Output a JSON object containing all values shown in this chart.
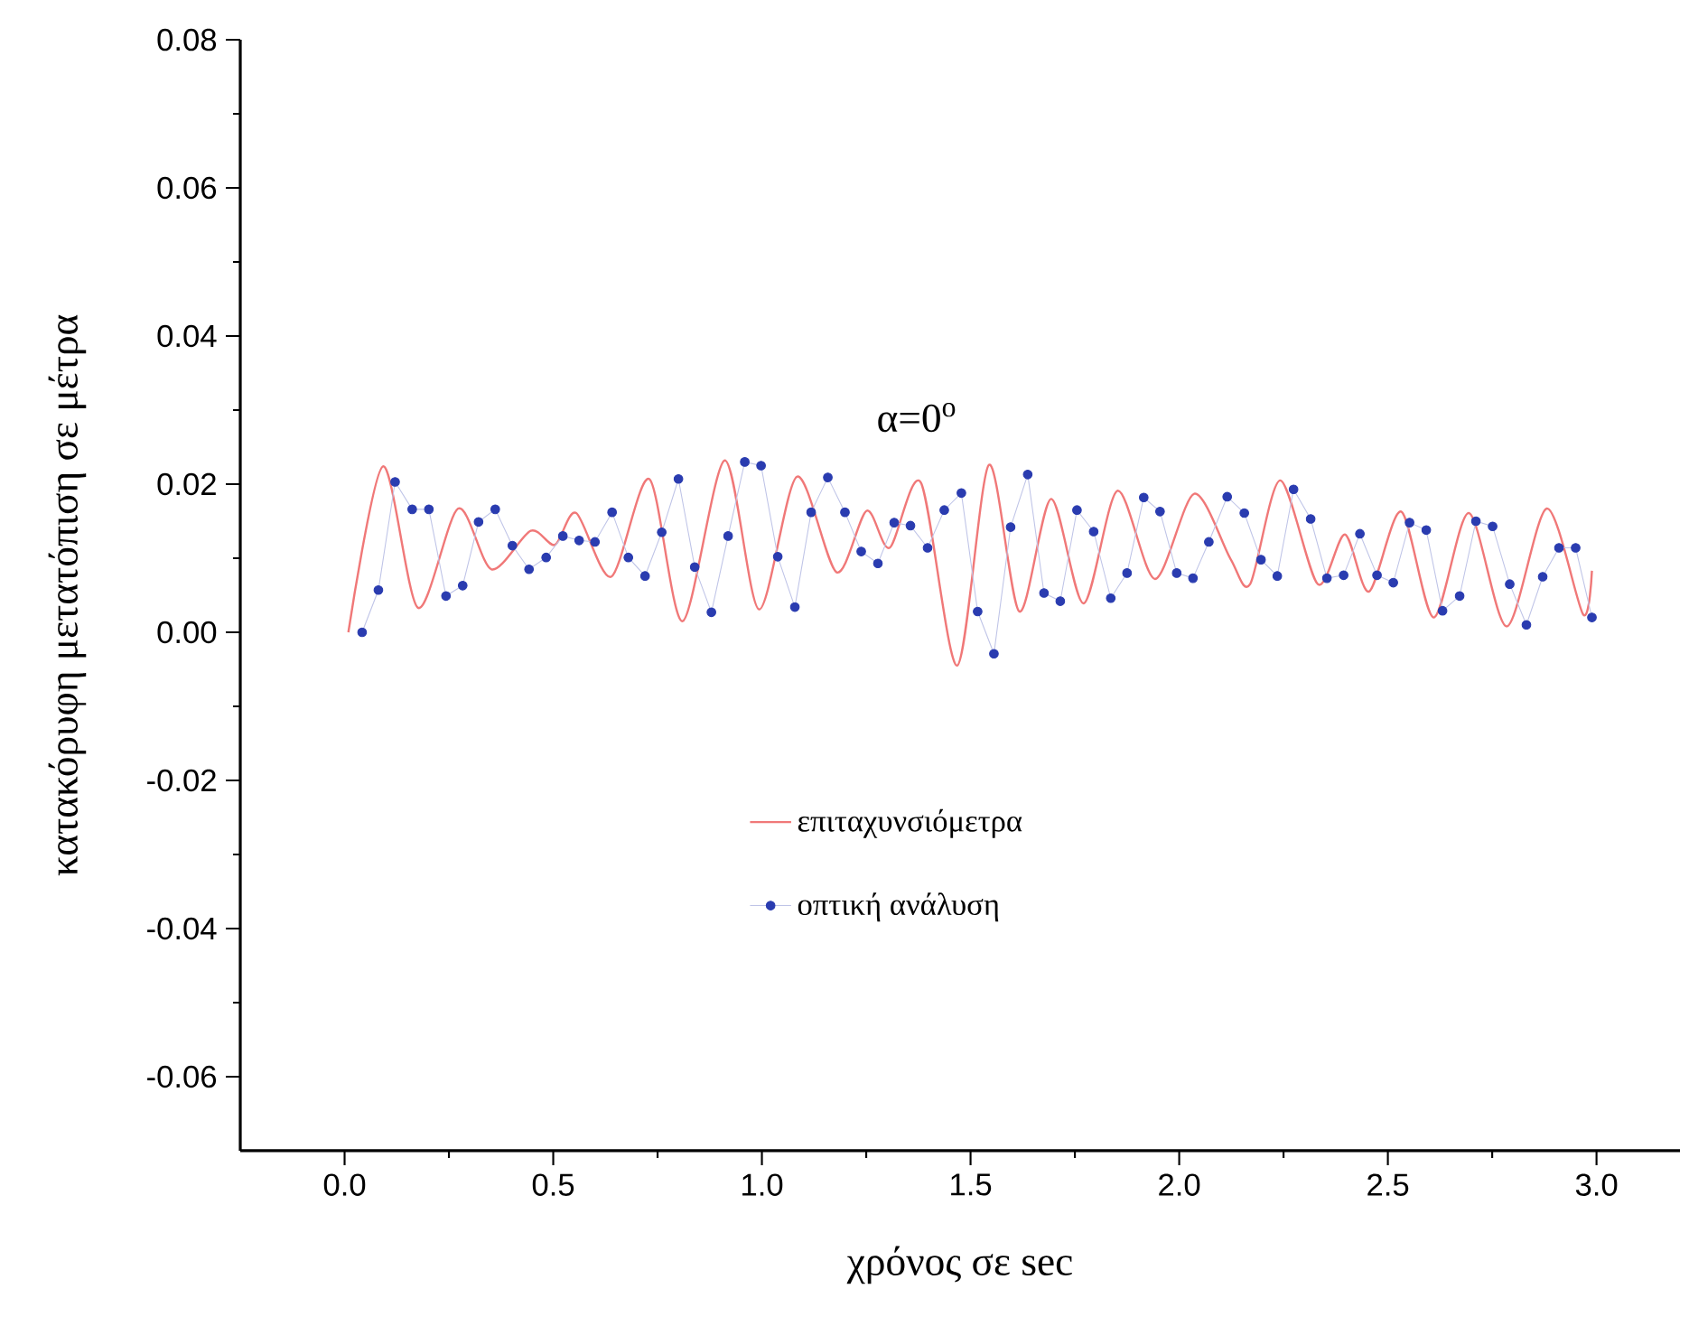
{
  "chart_data": {
    "type": "line",
    "xlabel": "χρόνος σε sec",
    "ylabel": "κατακόρυφη μετατόπιση σε μέτρα",
    "annotations": [
      "α=0$^{o}$"
    ],
    "xlim": [
      -0.25,
      3.2
    ],
    "ylim": [
      -0.07,
      0.08
    ],
    "xticks": [
      {
        "value": 0,
        "label": "0.0"
      },
      {
        "value": 0.5,
        "label": "0.5"
      },
      {
        "value": 1,
        "label": "1.0"
      },
      {
        "value": 1.5,
        "label": "1.5"
      },
      {
        "value": 2,
        "label": "2.0"
      },
      {
        "value": 2.5,
        "label": "2.5"
      },
      {
        "value": 3,
        "label": "3.0"
      }
    ],
    "yticks": [
      {
        "value": -0.06,
        "label": "-0.06"
      },
      {
        "value": -0.04,
        "label": "-0.04"
      },
      {
        "value": -0.02,
        "label": "-0.02"
      },
      {
        "value": 0,
        "label": "0.00"
      },
      {
        "value": 0.02,
        "label": "0.02"
      },
      {
        "value": 0.04,
        "label": "0.04"
      },
      {
        "value": 0.06,
        "label": "0.06"
      },
      {
        "value": 0.08,
        "label": "0.08"
      }
    ],
    "grid": false,
    "legend": "bottom",
    "series": [
      {
        "name": "επιταχυνσιόμετρα",
        "color": "#f07878",
        "marker": "none",
        "x": [
          0.009,
          0.092,
          0.176,
          0.272,
          0.352,
          0.446,
          0.504,
          0.555,
          0.639,
          0.73,
          0.81,
          0.911,
          0.993,
          1.084,
          1.179,
          1.251,
          1.306,
          1.381,
          1.468,
          1.544,
          1.617,
          1.693,
          1.771,
          1.852,
          1.942,
          2.036,
          2.123,
          2.17,
          2.242,
          2.332,
          2.397,
          2.455,
          2.532,
          2.61,
          2.694,
          2.785,
          2.881,
          2.968,
          2.989
        ],
        "values": [
          0.0,
          0.0224,
          0.0033,
          0.0167,
          0.0085,
          0.0137,
          0.0118,
          0.0161,
          0.0075,
          0.0207,
          0.0015,
          0.0232,
          0.0031,
          0.021,
          0.0081,
          0.0164,
          0.0114,
          0.0202,
          -0.0045,
          0.0226,
          0.0028,
          0.018,
          0.0039,
          0.0191,
          0.0072,
          0.0187,
          0.0099,
          0.0065,
          0.0205,
          0.0065,
          0.0132,
          0.0055,
          0.0163,
          0.002,
          0.0161,
          0.0008,
          0.0167,
          0.0024,
          0.0083
        ]
      },
      {
        "name": "οπτική ανάλυση",
        "color": "#2a3cb0",
        "marker": "circle",
        "x": [
          0.042,
          0.081,
          0.121,
          0.162,
          0.202,
          0.243,
          0.283,
          0.321,
          0.361,
          0.402,
          0.442,
          0.483,
          0.523,
          0.562,
          0.6,
          0.641,
          0.68,
          0.72,
          0.76,
          0.8,
          0.839,
          0.879,
          0.919,
          0.959,
          0.998,
          1.038,
          1.079,
          1.118,
          1.158,
          1.199,
          1.238,
          1.278,
          1.317,
          1.356,
          1.397,
          1.437,
          1.478,
          1.517,
          1.556,
          1.596,
          1.637,
          1.676,
          1.715,
          1.755,
          1.795,
          1.836,
          1.875,
          1.915,
          1.954,
          1.994,
          2.033,
          2.071,
          2.115,
          2.156,
          2.196,
          2.235,
          2.274,
          2.315,
          2.354,
          2.394,
          2.433,
          2.474,
          2.513,
          2.552,
          2.592,
          2.631,
          2.672,
          2.711,
          2.751,
          2.792,
          2.832,
          2.871,
          2.91,
          2.95,
          2.989
        ],
        "values": [
          0.0,
          0.0057,
          0.0203,
          0.0166,
          0.0166,
          0.0049,
          0.0063,
          0.0149,
          0.0166,
          0.0117,
          0.0085,
          0.0101,
          0.013,
          0.0124,
          0.0122,
          0.0162,
          0.0101,
          0.0076,
          0.0135,
          0.0207,
          0.0088,
          0.0027,
          0.013,
          0.023,
          0.0225,
          0.0102,
          0.0034,
          0.0162,
          0.0209,
          0.0162,
          0.0109,
          0.0093,
          0.0148,
          0.0144,
          0.0114,
          0.0165,
          0.0188,
          0.0028,
          -0.0029,
          0.0142,
          0.0213,
          0.0053,
          0.0042,
          0.0165,
          0.0136,
          0.0046,
          0.008,
          0.0182,
          0.0163,
          0.008,
          0.0073,
          0.0122,
          0.0183,
          0.0161,
          0.0098,
          0.0076,
          0.0193,
          0.0153,
          0.0073,
          0.0077,
          0.0133,
          0.0077,
          0.0067,
          0.0148,
          0.0138,
          0.0029,
          0.0049,
          0.015,
          0.0143,
          0.0065,
          0.001,
          0.0075,
          0.0114,
          0.0114,
          0.002
        ]
      }
    ]
  }
}
